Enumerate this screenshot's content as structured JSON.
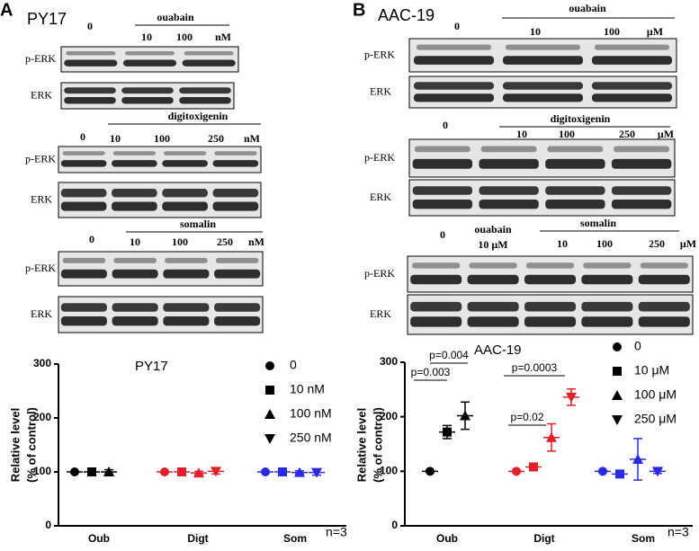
{
  "panels": [
    {
      "label": "A",
      "cell_line": "PY17",
      "blots": [
        {
          "treatment": "ouabain",
          "lanes": [
            "0",
            "10",
            "100"
          ],
          "unit": "nM",
          "rows": [
            "p-ERK",
            "ERK"
          ]
        },
        {
          "treatment": "digitoxigenin",
          "lanes": [
            "0",
            "10",
            "100",
            "250"
          ],
          "unit": "nM",
          "rows": [
            "p-ERK",
            "ERK"
          ]
        },
        {
          "treatment": "somalin",
          "lanes": [
            "0",
            "10",
            "100",
            "250"
          ],
          "unit": "nM",
          "rows": [
            "p-ERK",
            "ERK"
          ]
        }
      ]
    },
    {
      "label": "B",
      "cell_line": "AAC-19",
      "blots": [
        {
          "treatment": "ouabain",
          "lanes": [
            "0",
            "10",
            "100"
          ],
          "unit": "μM",
          "rows": [
            "p-ERK",
            "ERK"
          ]
        },
        {
          "treatment": "digitoxigenin",
          "lanes": [
            "0",
            "10",
            "100",
            "250"
          ],
          "unit": "μM",
          "rows": [
            "p-ERK",
            "ERK"
          ]
        },
        {
          "treatment": "somalin",
          "lanes": [
            "0",
            "10",
            "100",
            "250"
          ],
          "unit": "μM",
          "control": [
            "ouabain",
            "10 μM"
          ],
          "rows": [
            "p-ERK",
            "ERK"
          ]
        }
      ]
    }
  ],
  "chart_data": [
    {
      "type": "dot",
      "title": "PY17",
      "y_label": [
        "Relative level",
        "(% of control)"
      ],
      "categories": [
        "Oub",
        "Digt",
        "Som"
      ],
      "group_colors": [
        "#000000",
        "#e0202a",
        "#2a2ae0"
      ],
      "ylim": [
        0,
        300
      ],
      "yticks": [
        0,
        100,
        200,
        300
      ],
      "annotation": "n=3",
      "series": [
        {
          "name": "0",
          "marker": "circle",
          "values": [
            100,
            100,
            100
          ],
          "errors": [
            1,
            1,
            1
          ]
        },
        {
          "name": "10 nM",
          "marker": "square",
          "values": [
            100,
            100,
            100
          ],
          "errors": [
            5,
            5,
            5
          ]
        },
        {
          "name": "100 nM",
          "marker": "triangle-up",
          "values": [
            100,
            98,
            99
          ],
          "errors": [
            4,
            3,
            3
          ]
        },
        {
          "name": "250 nM",
          "marker": "triangle-down",
          "values": [
            null,
            101,
            99
          ],
          "errors": [
            null,
            5,
            5
          ]
        }
      ]
    },
    {
      "type": "dot",
      "title": "AAC-19",
      "y_label": [
        "Relative level",
        "(% of control)"
      ],
      "categories": [
        "Oub",
        "Digt",
        "Som"
      ],
      "group_colors": [
        "#000000",
        "#e0202a",
        "#2a2ae0"
      ],
      "ylim": [
        0,
        300
      ],
      "yticks": [
        0,
        100,
        200,
        300
      ],
      "annotation": "n=3",
      "p_values": [
        "p=0.004",
        "p=0.003",
        "p=0.0003",
        "p=0.02"
      ],
      "series": [
        {
          "name": "0",
          "marker": "circle",
          "values": [
            100,
            100,
            100
          ],
          "errors": [
            1,
            1,
            1
          ]
        },
        {
          "name": "10 μM",
          "marker": "square",
          "values": [
            172,
            108,
            95
          ],
          "errors": [
            12,
            6,
            6
          ]
        },
        {
          "name": "100 μM",
          "marker": "triangle-up",
          "values": [
            202,
            162,
            122
          ],
          "errors": [
            25,
            25,
            38
          ]
        },
        {
          "name": "250 μM",
          "marker": "triangle-down",
          "values": [
            null,
            236,
            100
          ],
          "errors": [
            null,
            15,
            4
          ]
        }
      ]
    }
  ]
}
